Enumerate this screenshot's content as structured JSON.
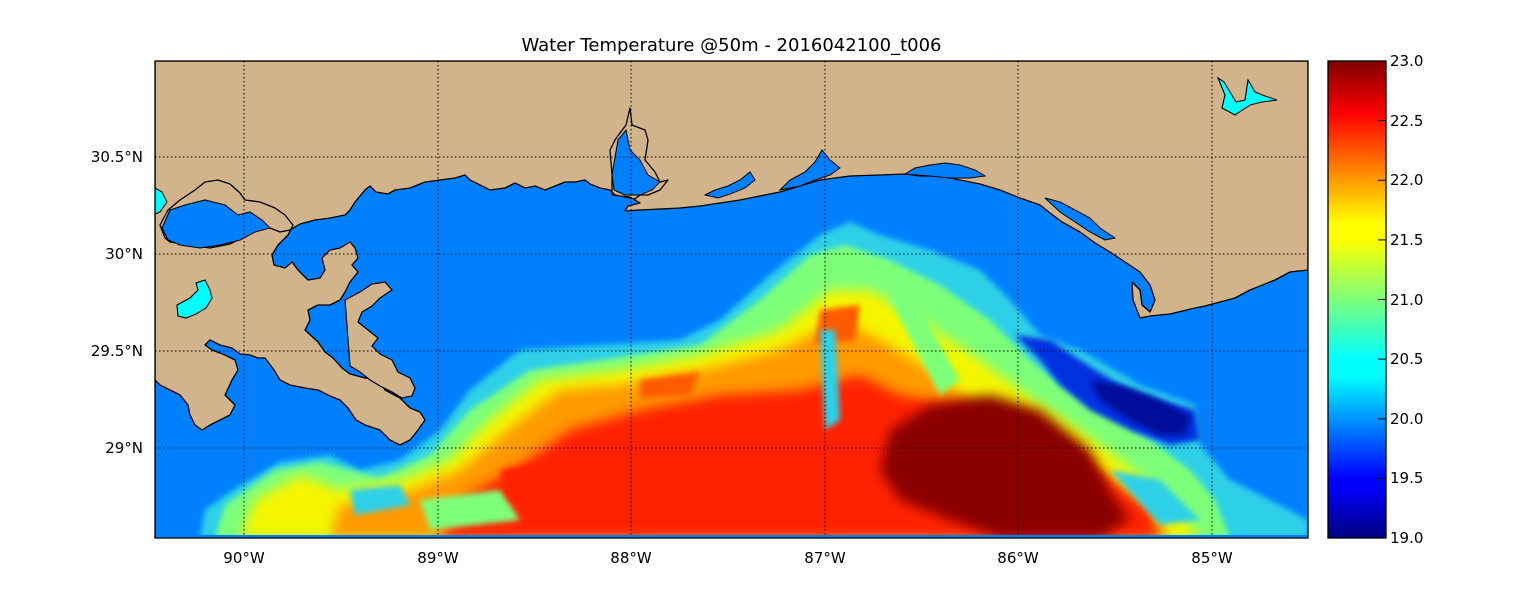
{
  "title": "Water Temperature @50m - 2016042100_t006",
  "map": {
    "lon_range": [
      -90.5,
      -84.5
    ],
    "lat_range": [
      28.55,
      31.0
    ],
    "grid": true,
    "grid_style": "dotted",
    "land_color": "#d2b48c",
    "ocean_color": "#0080ff",
    "lake_color": "#00ffff",
    "coastline_color": "#000000",
    "lon_ticks": [
      {
        "value": -90,
        "label": "90°W"
      },
      {
        "value": -89,
        "label": "89°W"
      },
      {
        "value": -88,
        "label": "88°W"
      },
      {
        "value": -87,
        "label": "87°W"
      },
      {
        "value": -86,
        "label": "86°W"
      },
      {
        "value": -85,
        "label": "85°W"
      }
    ],
    "lat_ticks": [
      {
        "value": 30.5,
        "label": "30.5°N"
      },
      {
        "value": 30.0,
        "label": "30°N"
      },
      {
        "value": 29.5,
        "label": "29.5°N"
      },
      {
        "value": 29.0,
        "label": "29°N"
      }
    ]
  },
  "colorbar": {
    "colormap": "jet",
    "min": 19.0,
    "max": 23.0,
    "ticks": [
      "19.0",
      "19.5",
      "20.0",
      "20.5",
      "21.0",
      "21.5",
      "22.0",
      "22.5",
      "23.0"
    ]
  }
}
